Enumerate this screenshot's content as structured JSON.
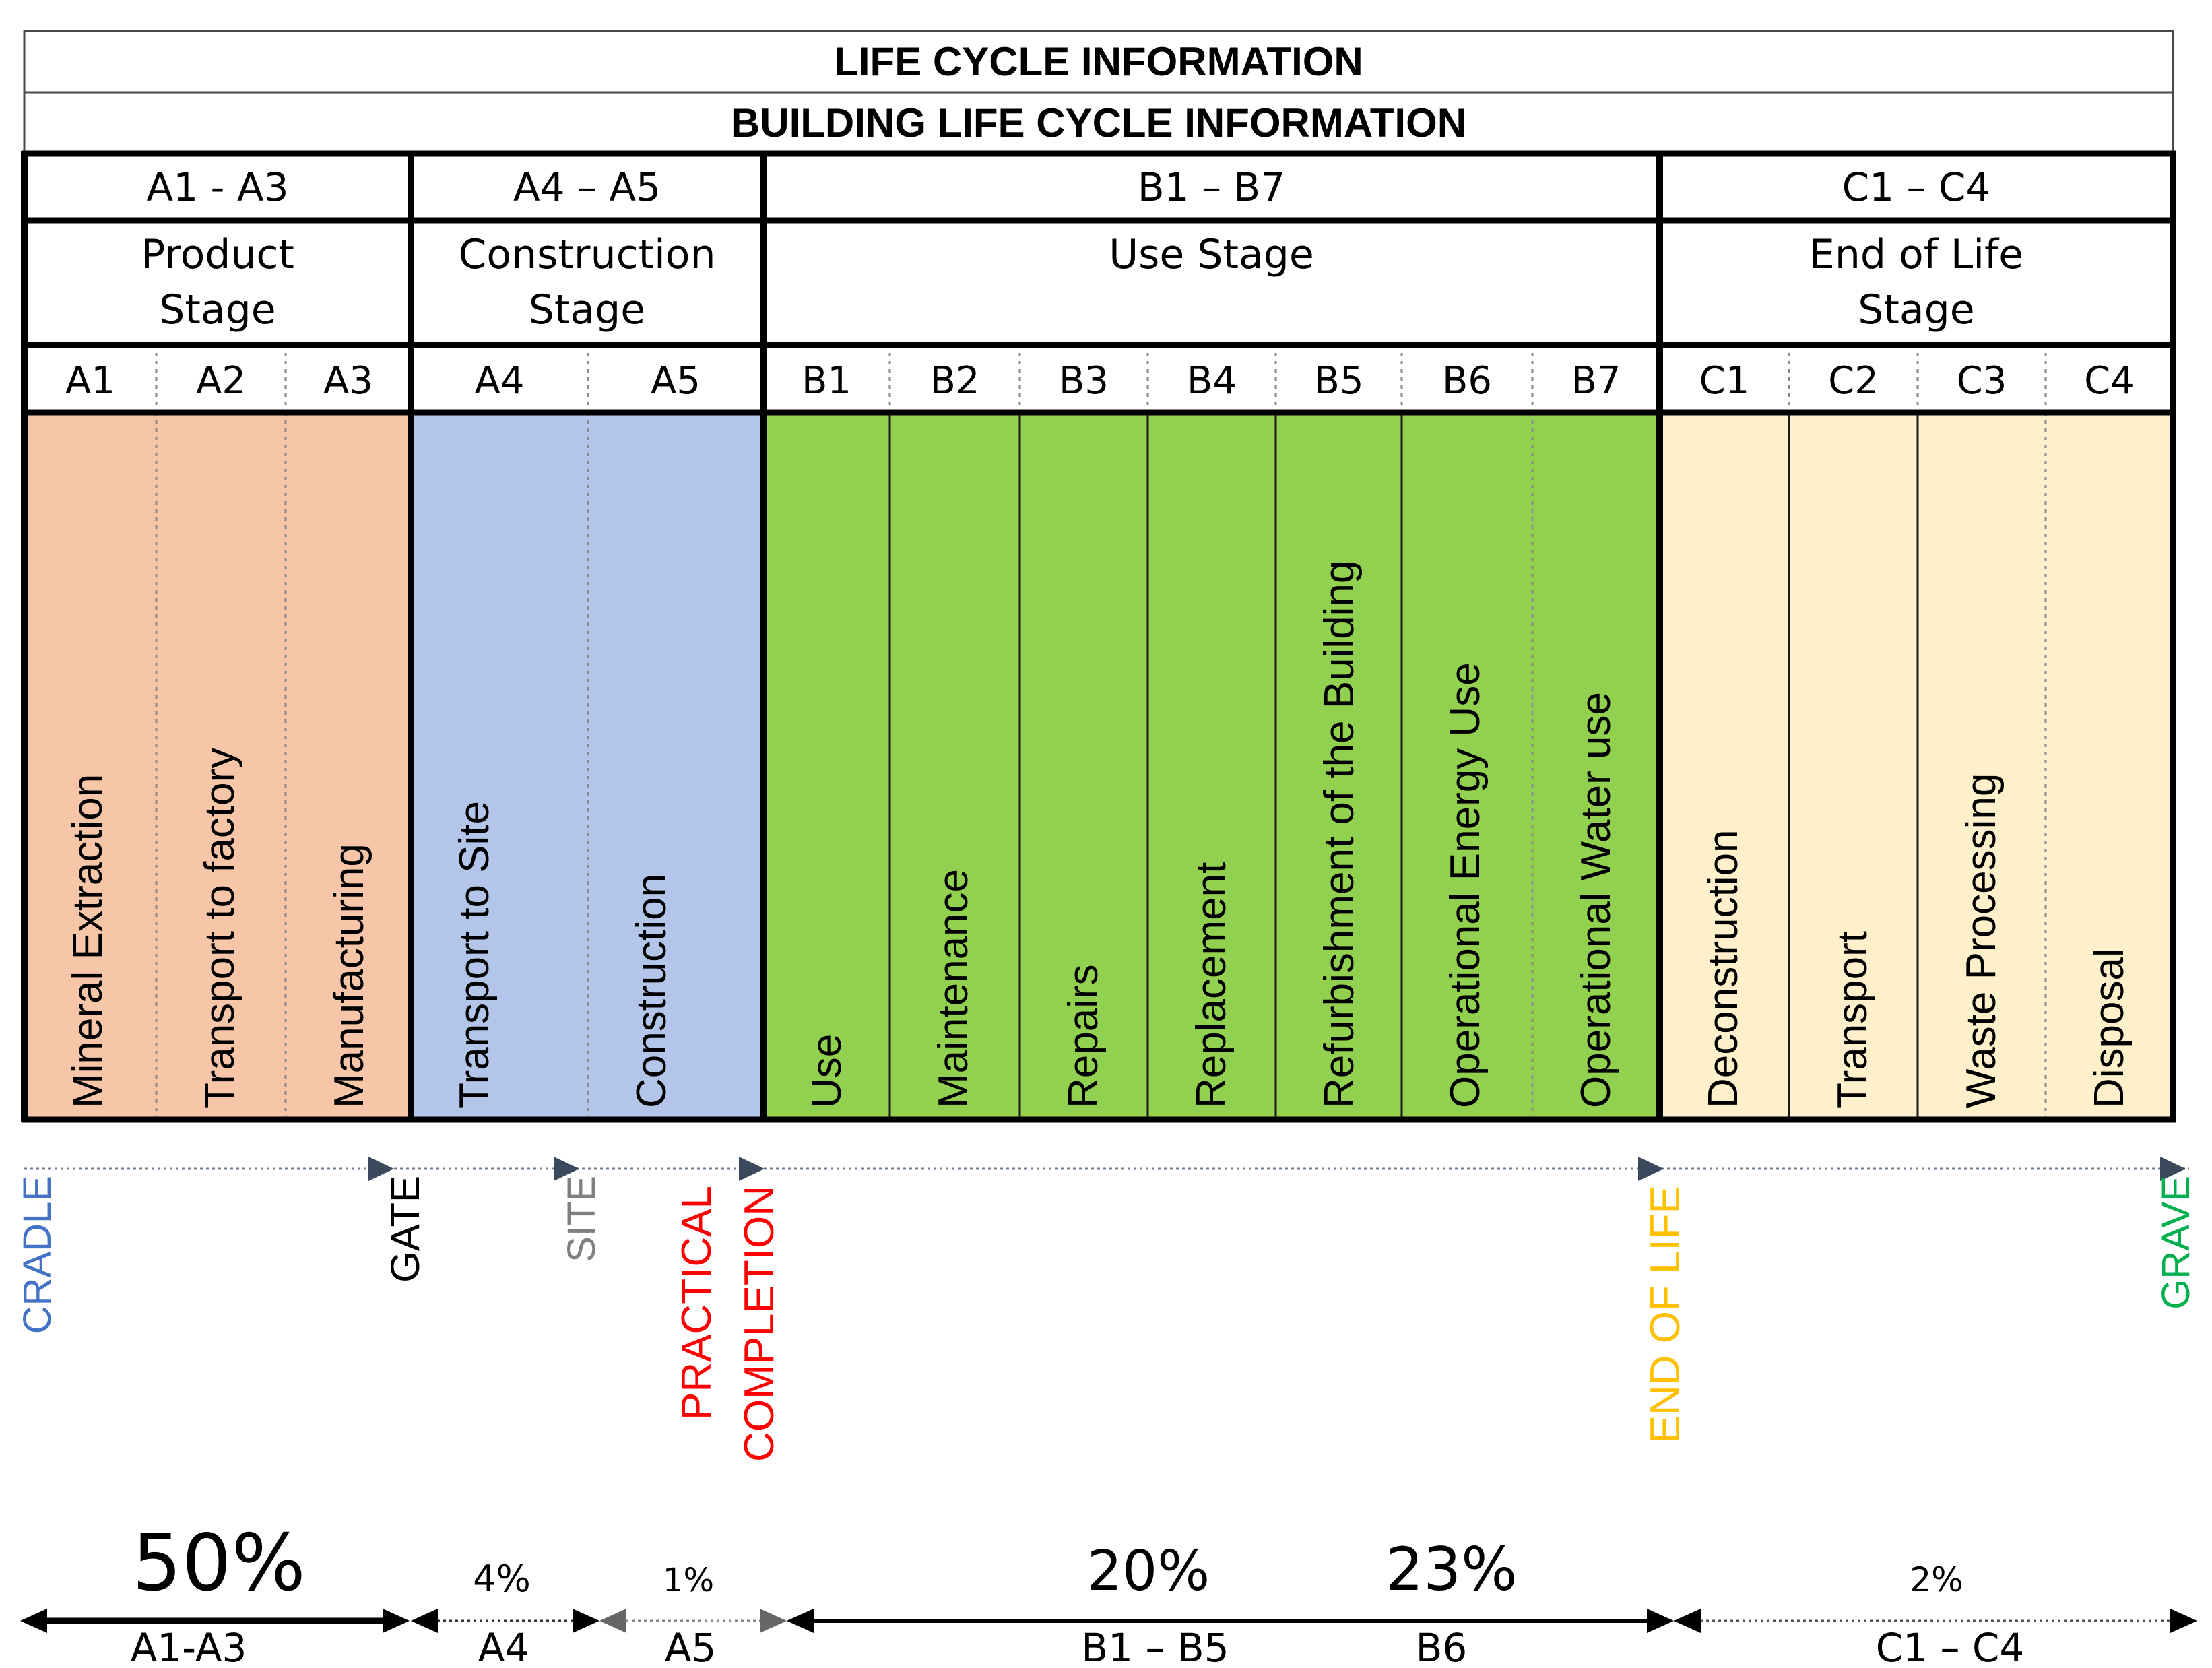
{
  "title": "LIFE CYCLE INFORMATION",
  "subtitle": "BUILDING LIFE CYCLE INFORMATION",
  "colors": {
    "product": "#f7c6a8",
    "construction": "#b3c6ea",
    "use": "#92d050",
    "end_of_life": "#fff0cc",
    "cradle": "#4472c4",
    "gate": "#000000",
    "site": "#808080",
    "practical_completion": "#ff0000",
    "end_of_life_marker": "#ffc000",
    "grave": "#00b050"
  },
  "groups": [
    {
      "code": "A1 - A3",
      "stage_lines": [
        "Product",
        "Stage"
      ],
      "color_key": "product",
      "modules": [
        {
          "code": "A1",
          "label": "Mineral Extraction"
        },
        {
          "code": "A2",
          "label": "Transport to factory"
        },
        {
          "code": "A3",
          "label": "Manufacturing"
        }
      ]
    },
    {
      "code": "A4 – A5",
      "stage_lines": [
        "Construction",
        "Stage"
      ],
      "color_key": "construction",
      "modules": [
        {
          "code": "A4",
          "label": "Transport to Site"
        },
        {
          "code": "A5",
          "label": "Construction"
        }
      ]
    },
    {
      "code": "B1 – B7",
      "stage_lines": [
        "Use Stage"
      ],
      "color_key": "use",
      "modules": [
        {
          "code": "B1",
          "label": "Use"
        },
        {
          "code": "B2",
          "label": "Maintenance"
        },
        {
          "code": "B3",
          "label": "Repairs"
        },
        {
          "code": "B4",
          "label": "Replacement"
        },
        {
          "code": "B5",
          "label": "Refurbishment of the Building"
        },
        {
          "code": "B6",
          "label": "Operational Energy Use"
        },
        {
          "code": "B7",
          "label": "Operational Water use"
        }
      ]
    },
    {
      "code": "C1 – C4",
      "stage_lines": [
        "End of Life",
        "Stage"
      ],
      "color_key": "end_of_life",
      "modules": [
        {
          "code": "C1",
          "label": "Deconstruction"
        },
        {
          "code": "C2",
          "label": "Transport"
        },
        {
          "code": "C3",
          "label": "Waste Processing"
        },
        {
          "code": "C4",
          "label": "Disposal"
        }
      ]
    }
  ],
  "milestones": [
    {
      "id": "cradle",
      "lines": [
        "CRADLE"
      ],
      "color_key": "cradle"
    },
    {
      "id": "gate",
      "lines": [
        "GATE"
      ],
      "color_key": "gate"
    },
    {
      "id": "site",
      "lines": [
        "SITE"
      ],
      "color_key": "site"
    },
    {
      "id": "practical-completion",
      "lines": [
        "PRACTICAL",
        "COMPLETION"
      ],
      "color_key": "practical_completion"
    },
    {
      "id": "end-of-life",
      "lines": [
        "END OF LIFE"
      ],
      "color_key": "end_of_life_marker"
    },
    {
      "id": "grave",
      "lines": [
        "GRAVE"
      ],
      "color_key": "grave"
    }
  ],
  "impacts": [
    {
      "id": "a1-a3",
      "label": "A1-A3",
      "percent": "50%",
      "percent_value": 50
    },
    {
      "id": "a4",
      "label": "A4",
      "percent": "4%",
      "percent_value": 4
    },
    {
      "id": "a5",
      "label": "A5",
      "percent": "1%",
      "percent_value": 1
    },
    {
      "id": "b1-b5",
      "label": "B1 – B5",
      "percent": "20%",
      "percent_value": 20
    },
    {
      "id": "b6",
      "label": "B6",
      "percent": "23%",
      "percent_value": 23
    },
    {
      "id": "c1-c4",
      "label": "C1 – C4",
      "percent": "2%",
      "percent_value": 2
    }
  ]
}
